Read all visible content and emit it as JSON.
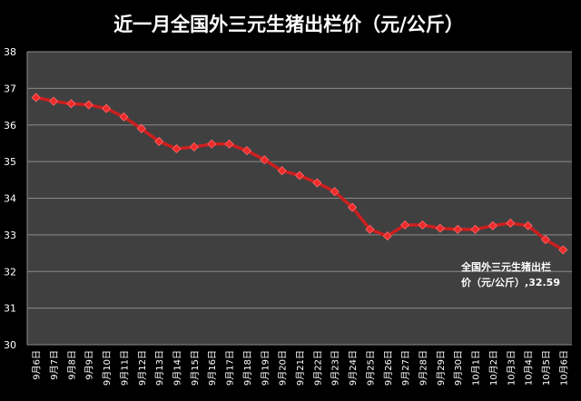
{
  "chart_data": {
    "type": "line",
    "title": "近一月全国外三元生猪出栏价（元/公斤）",
    "xlabel": "",
    "ylabel": "",
    "ylim": [
      30,
      38
    ],
    "yticks": [
      "30",
      "31",
      "32",
      "33",
      "34",
      "35",
      "36",
      "37",
      "38"
    ],
    "grid": true,
    "legend": "none",
    "categories": [
      "9月6日",
      "9月7日",
      "9月8日",
      "9月9日",
      "9月10日",
      "9月11日",
      "9月12日",
      "9月13日",
      "9月14日",
      "9月15日",
      "9月16日",
      "9月17日",
      "9月18日",
      "9月19日",
      "9月20日",
      "9月21日",
      "9月22日",
      "9月23日",
      "9月24日",
      "9月25日",
      "9月26日",
      "9月27日",
      "9月28日",
      "9月29日",
      "9月30日",
      "10月1日",
      "10月2日",
      "10月3日",
      "10月4日",
      "10月5日",
      "10月6日"
    ],
    "series": [
      {
        "values": [
          36.75,
          36.65,
          36.58,
          36.55,
          36.45,
          36.22,
          35.9,
          35.55,
          35.35,
          35.4,
          35.48,
          35.48,
          35.3,
          35.05,
          34.75,
          34.62,
          34.42,
          34.18,
          33.75,
          33.15,
          32.97,
          33.27,
          33.27,
          33.18,
          33.15,
          33.15,
          33.25,
          33.32,
          33.25,
          32.87,
          32.59
        ]
      }
    ],
    "annotation": {
      "line1": "全国外三元生猪出栏",
      "line2": "价（元/公斤）,32.59"
    },
    "colors": {
      "background": "#000000",
      "plot_area": "#404040",
      "line": "#cc1f1f",
      "marker": "#ee2a2a",
      "grid": "#8a8a8a",
      "text": "#ffffff"
    }
  }
}
